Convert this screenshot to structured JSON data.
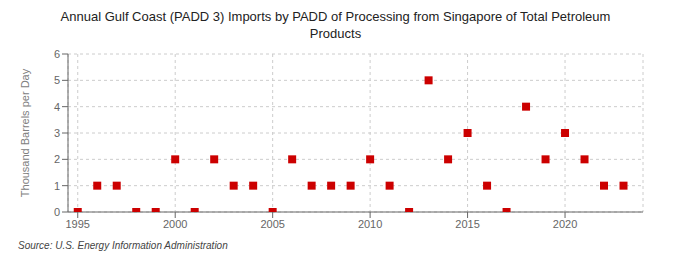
{
  "chart_data": {
    "type": "scatter",
    "title": "Annual Gulf Coast (PADD 3) Imports by PADD of Processing from Singapore of Total Petroleum\nProducts",
    "ylabel": "Thousand Barrels per Day",
    "annotations": [
      "Source: U.S. Energy Information Administration"
    ],
    "x": [
      1995,
      1996,
      1997,
      1998,
      1999,
      2000,
      2001,
      2002,
      2003,
      2004,
      2005,
      2006,
      2007,
      2008,
      2009,
      2010,
      2011,
      2012,
      2013,
      2014,
      2015,
      2016,
      2017,
      2018,
      2019,
      2020,
      2021,
      2022,
      2023
    ],
    "values": [
      0,
      1,
      1,
      0,
      0,
      2,
      0,
      2,
      1,
      1,
      0,
      2,
      1,
      1,
      1,
      2,
      1,
      0,
      5,
      2,
      3,
      1,
      0,
      4,
      2,
      3,
      2,
      1,
      1
    ],
    "xlim": [
      1994.5,
      2024
    ],
    "ylim": [
      0,
      6
    ],
    "xticks": [
      1995,
      2000,
      2005,
      2010,
      2015,
      2020
    ],
    "yticks": [
      0,
      1,
      2,
      3,
      4,
      5,
      6
    ],
    "color": "#cc0000",
    "marker": "square",
    "grid": true
  }
}
